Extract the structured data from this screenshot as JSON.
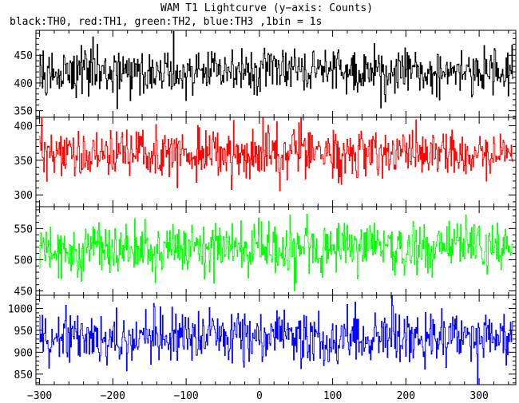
{
  "title": "WAM T1 Lightcurve (y−axis: Counts)",
  "subtitle": "black:TH0, red:TH1, green:TH2, blue:TH3 ,1bin = 1s",
  "chart_data": {
    "type": "line",
    "title": "WAM T1 Lightcurve (y−axis: Counts)",
    "subtitle": "black:TH0, red:TH1, green:TH2, blue:TH3 ,1bin = 1s",
    "ylabel": "Counts",
    "xlim": [
      -305,
      350
    ],
    "x_ticks": [
      -300,
      -200,
      -100,
      0,
      100,
      200,
      300
    ],
    "x_tick_labels": [
      "−300",
      "−200",
      "−100",
      "0",
      "100",
      "200",
      "300"
    ],
    "x_start": -300,
    "x_end": 346,
    "x_step": 1,
    "grid": false,
    "panels": [
      {
        "name": "TH0",
        "color": "#000000",
        "ylim": [
          338,
          495
        ],
        "mean": 422,
        "amplitude": 26,
        "y_ticks": [
          350,
          400,
          450
        ],
        "y_tick_labels": [
          "350",
          "400",
          "450"
        ]
      },
      {
        "name": "TH1",
        "color": "#ff0000",
        "ylim": [
          283,
          412
        ],
        "mean": 360,
        "amplitude": 21,
        "y_ticks": [
          300,
          350,
          400
        ],
        "y_tick_labels": [
          "300",
          "350",
          "400"
        ]
      },
      {
        "name": "TH2",
        "color": "#00ff00",
        "ylim": [
          443,
          585
        ],
        "mean": 518,
        "amplitude": 25,
        "y_ticks": [
          450,
          500,
          550
        ],
        "y_tick_labels": [
          "450",
          "500",
          "550"
        ]
      },
      {
        "name": "TH3",
        "color": "#0000ff",
        "ylim": [
          826,
          1030
        ],
        "mean": 935,
        "amplitude": 36,
        "y_ticks": [
          850,
          900,
          950,
          1000
        ],
        "y_tick_labels": [
          "850",
          "900",
          "950",
          "1000"
        ]
      }
    ]
  }
}
